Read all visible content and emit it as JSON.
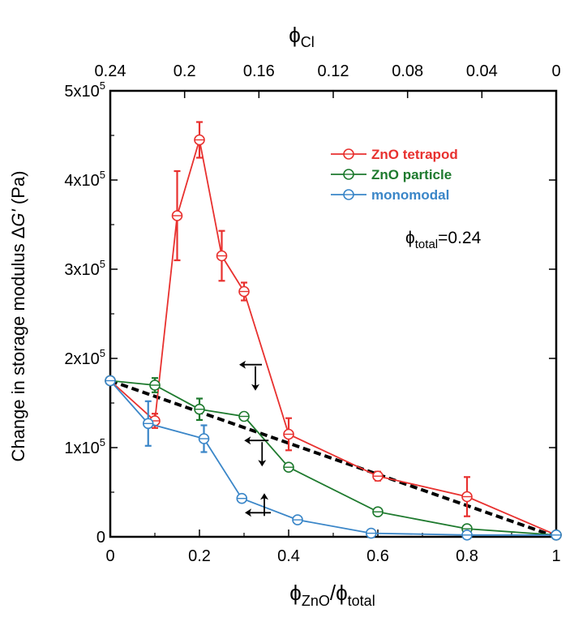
{
  "chart_data": {
    "type": "line",
    "xlabel": {
      "main": "ϕ",
      "sub1": "ZnO",
      "slash": "/ϕ",
      "sub2": "total"
    },
    "x2label": {
      "main": "ϕ",
      "sub": "Cl"
    },
    "ylabel": {
      "prefix": "Change in storage modulus ",
      "delta": "Δ",
      "g": "G'",
      "suffix": " (Pa)"
    },
    "xlim": [
      0,
      1
    ],
    "ylim": [
      0,
      500000
    ],
    "x_ticks": [
      {
        "v": 0,
        "label": "0"
      },
      {
        "v": 0.2,
        "label": "0.2"
      },
      {
        "v": 0.4,
        "label": "0.4"
      },
      {
        "v": 0.6,
        "label": "0.6"
      },
      {
        "v": 0.8,
        "label": "0.8"
      },
      {
        "v": 1,
        "label": "1"
      }
    ],
    "x2_ticks": [
      {
        "v": 0,
        "label": "0.24"
      },
      {
        "v": 0.1667,
        "label": "0.2"
      },
      {
        "v": 0.3333,
        "label": "0.16"
      },
      {
        "v": 0.5,
        "label": "0.12"
      },
      {
        "v": 0.6667,
        "label": "0.08"
      },
      {
        "v": 0.8333,
        "label": "0.04"
      },
      {
        "v": 1,
        "label": "0"
      }
    ],
    "y_ticks": [
      {
        "v": 0,
        "label": "0"
      },
      {
        "v": 100000,
        "base": "1x10",
        "exp": "5"
      },
      {
        "v": 200000,
        "base": "2x10",
        "exp": "5"
      },
      {
        "v": 300000,
        "base": "3x10",
        "exp": "5"
      },
      {
        "v": 400000,
        "base": "4x10",
        "exp": "5"
      },
      {
        "v": 500000,
        "base": "5x10",
        "exp": "5"
      }
    ],
    "series": [
      {
        "name": "ZnO tetrapod",
        "color": "#e8312f",
        "x": [
          0,
          0.1,
          0.15,
          0.2,
          0.25,
          0.3,
          0.4,
          0.6,
          0.8,
          1
        ],
        "y": [
          175000,
          130000,
          360000,
          445000,
          315000,
          275000,
          115000,
          68000,
          45000,
          2000
        ],
        "err": [
          0,
          8000,
          50000,
          20000,
          28000,
          10000,
          18000,
          5000,
          22000,
          0
        ]
      },
      {
        "name": "ZnO particle",
        "color": "#1e7a2e",
        "x": [
          0,
          0.1,
          0.2,
          0.3,
          0.4,
          0.6,
          0.8,
          1
        ],
        "y": [
          175000,
          170000,
          143000,
          135000,
          78000,
          28000,
          9000,
          2000
        ],
        "err": [
          0,
          8000,
          12000,
          3000,
          3000,
          2000,
          2000,
          0
        ]
      },
      {
        "name": "monomodal",
        "color": "#3a86c8",
        "x": [
          0,
          0.085,
          0.21,
          0.295,
          0.42,
          0.585,
          0.8,
          1
        ],
        "y": [
          175000,
          127000,
          110000,
          43000,
          19000,
          4000,
          2000,
          2000
        ],
        "err": [
          0,
          25000,
          15000,
          4000,
          2000,
          1000,
          1000,
          0
        ]
      }
    ],
    "reference_line": {
      "x": [
        0,
        1
      ],
      "y": [
        175000,
        0
      ],
      "style": "dashed",
      "color": "#000000"
    },
    "annotation": {
      "main": "ϕ",
      "sub": "total",
      "suffix": "=0.24"
    },
    "legend_placement": "top-right",
    "grid": false
  }
}
